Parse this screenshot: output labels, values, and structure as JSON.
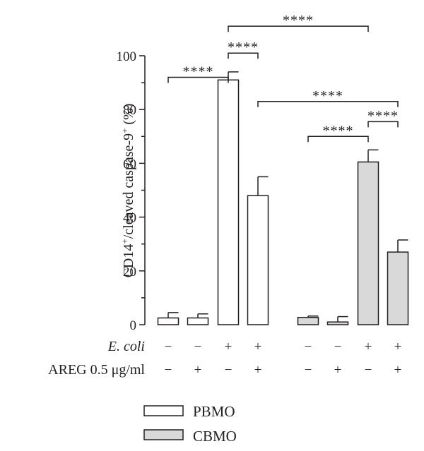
{
  "colors": {
    "PBMO": "#ffffff",
    "CBMO": "#d9d9d9",
    "stroke": "#231f20"
  },
  "chart_data": {
    "type": "bar",
    "ylabel_main": "CD14",
    "ylabel_sup1": "+",
    "ylabel_mid": "/cleaved caspase-9",
    "ylabel_sup2": "+",
    "ylabel_unit": " (%)",
    "ylim": [
      0,
      100
    ],
    "yticks": [
      "0",
      "20",
      "40",
      "60",
      "80",
      "100"
    ],
    "grid": false,
    "legend_position": "bottom",
    "series": [
      {
        "name": "PBMO",
        "values": [
          2.5,
          2.5,
          91,
          48
        ],
        "errors": [
          2,
          1.5,
          3,
          7
        ]
      },
      {
        "name": "CBMO",
        "values": [
          2.7,
          1,
          60.5,
          27
        ],
        "errors": [
          0.5,
          2,
          4.5,
          4.5
        ]
      }
    ],
    "conditions": {
      "ecoli_label": "E. coli",
      "areg_label": "AREG 0.5 μg/ml",
      "ecoli": [
        "−",
        "−",
        "+",
        "+",
        "−",
        "−",
        "+",
        "+"
      ],
      "areg": [
        "−",
        "+",
        "−",
        "+",
        "−",
        "+",
        "−",
        "+"
      ]
    },
    "significance": [
      {
        "from": 0,
        "to": 2,
        "label": "****",
        "level": 92
      },
      {
        "from": 2,
        "to": 3,
        "label": "****",
        "level": 101
      },
      {
        "from": 2,
        "to": 6,
        "label": "****",
        "level": 111
      },
      {
        "from": 3,
        "to": 7,
        "label": "****",
        "level": 83
      },
      {
        "from": 4,
        "to": 6,
        "label": "****",
        "level": 70
      },
      {
        "from": 6,
        "to": 7,
        "label": "****",
        "level": 75.5
      }
    ]
  }
}
